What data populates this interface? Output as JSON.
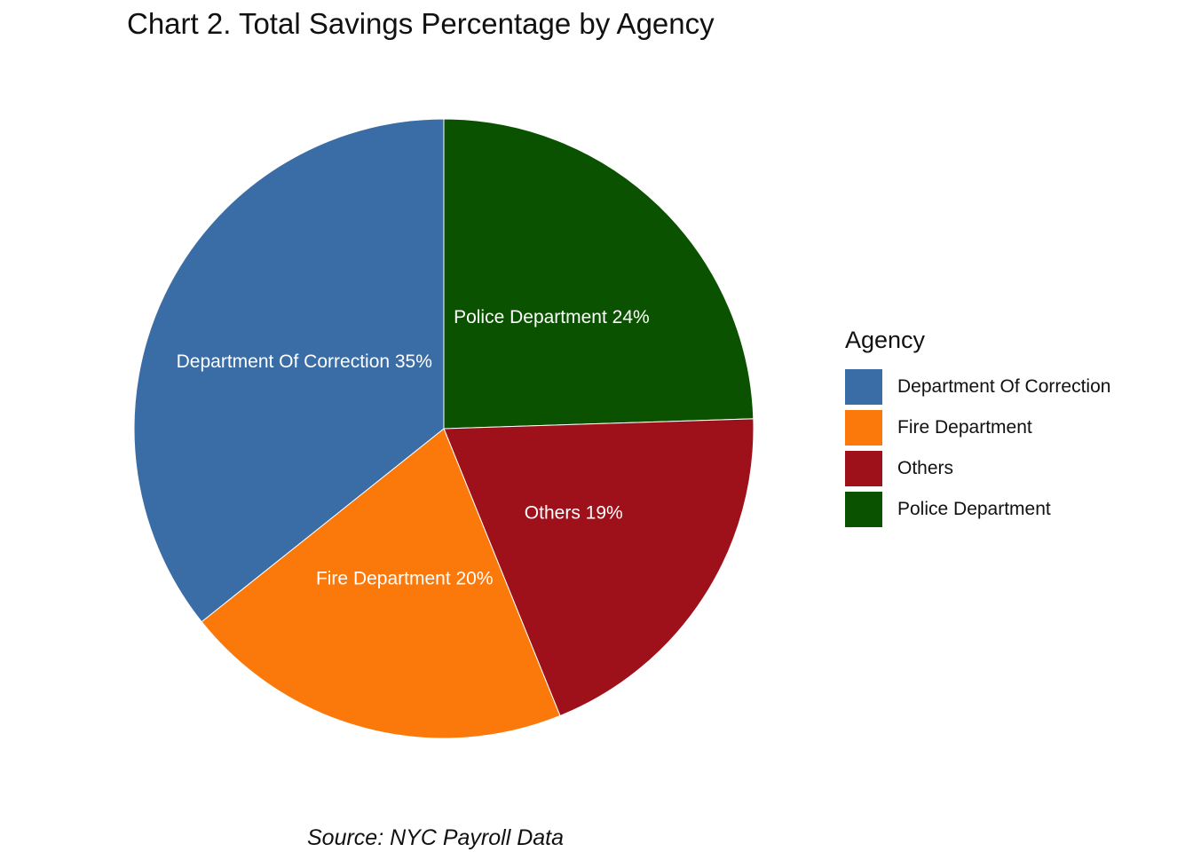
{
  "chart_data": {
    "type": "pie",
    "title": "Chart 2. Total Savings Percentage by Agency",
    "caption": "Source: NYC Payroll Data",
    "legend_title": "Agency",
    "legend_position": "right",
    "slices": [
      {
        "label": "Police Department",
        "value": 24,
        "color": "#0a5200",
        "slice_label": "Police Department 24%"
      },
      {
        "label": "Others",
        "value": 19,
        "color": "#9e111b",
        "slice_label": "Others 19%"
      },
      {
        "label": "Fire Department",
        "value": 20,
        "color": "#fb790b",
        "slice_label": "Fire Department 20%"
      },
      {
        "label": "Department Of Correction",
        "value": 35,
        "color": "#3a6ca5",
        "slice_label": "Department Of Correction 35%"
      }
    ],
    "legend": [
      {
        "label": "Department Of Correction",
        "color": "#3a6ca5"
      },
      {
        "label": "Fire Department",
        "color": "#fb790b"
      },
      {
        "label": "Others",
        "color": "#9e111b"
      },
      {
        "label": "Police Department",
        "color": "#0a5200"
      }
    ]
  }
}
